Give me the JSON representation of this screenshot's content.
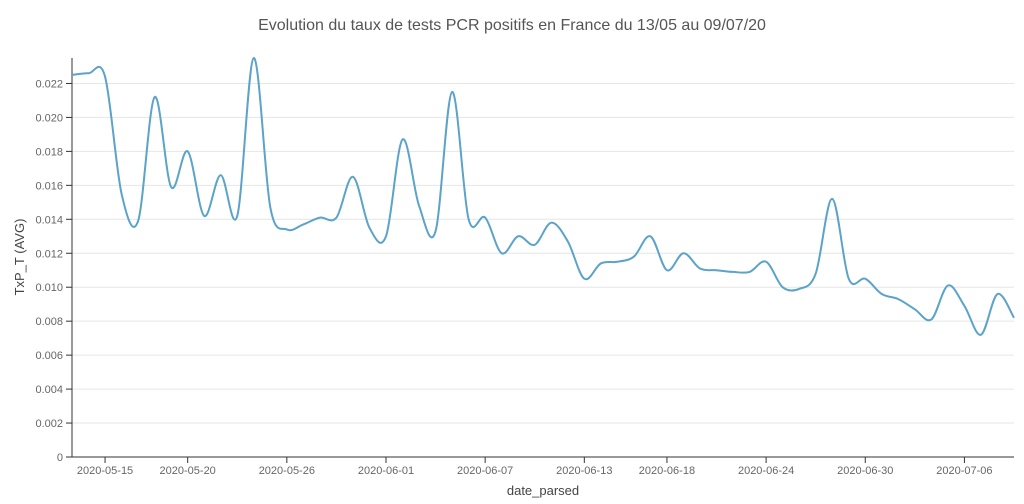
{
  "chart_data": {
    "type": "line",
    "title": "Evolution du taux  de tests PCR positifs en France du 13/05 au 09/07/20",
    "xlabel": "date_parsed",
    "ylabel": "TxP_T (AVG)",
    "ylim": [
      0,
      0.0235
    ],
    "xlim": [
      "2020-05-13",
      "2020-07-09"
    ],
    "yticks": [
      0,
      0.002,
      0.004,
      0.006,
      0.008,
      0.01,
      0.012,
      0.014,
      0.016,
      0.018,
      0.02,
      0.022
    ],
    "ytick_labels": [
      "0",
      "0.002",
      "0.004",
      "0.006",
      "0.008",
      "0.010",
      "0.012",
      "0.014",
      "0.016",
      "0.018",
      "0.020",
      "0.022"
    ],
    "xticks": [
      "2020-05-15",
      "2020-05-20",
      "2020-05-26",
      "2020-06-01",
      "2020-06-07",
      "2020-06-13",
      "2020-06-18",
      "2020-06-24",
      "2020-06-30",
      "2020-07-06"
    ],
    "grid": true,
    "series": [
      {
        "color": "#5ba3c9",
        "x": [
          "2020-05-13",
          "2020-05-14",
          "2020-05-15",
          "2020-05-16",
          "2020-05-17",
          "2020-05-18",
          "2020-05-19",
          "2020-05-20",
          "2020-05-21",
          "2020-05-22",
          "2020-05-23",
          "2020-05-24",
          "2020-05-25",
          "2020-05-26",
          "2020-05-27",
          "2020-05-28",
          "2020-05-29",
          "2020-05-30",
          "2020-05-31",
          "2020-06-01",
          "2020-06-02",
          "2020-06-03",
          "2020-06-04",
          "2020-06-05",
          "2020-06-06",
          "2020-06-07",
          "2020-06-08",
          "2020-06-09",
          "2020-06-10",
          "2020-06-11",
          "2020-06-12",
          "2020-06-13",
          "2020-06-14",
          "2020-06-15",
          "2020-06-16",
          "2020-06-17",
          "2020-06-18",
          "2020-06-19",
          "2020-06-20",
          "2020-06-21",
          "2020-06-22",
          "2020-06-23",
          "2020-06-24",
          "2020-06-25",
          "2020-06-26",
          "2020-06-27",
          "2020-06-28",
          "2020-06-29",
          "2020-06-30",
          "2020-07-01",
          "2020-07-02",
          "2020-07-03",
          "2020-07-04",
          "2020-07-05",
          "2020-07-06",
          "2020-07-07",
          "2020-07-08",
          "2020-07-09"
        ],
        "y": [
          0.0225,
          0.0226,
          0.0224,
          0.0155,
          0.0139,
          0.0212,
          0.0159,
          0.018,
          0.0142,
          0.0166,
          0.0142,
          0.0235,
          0.0147,
          0.0134,
          0.0137,
          0.0141,
          0.0141,
          0.0165,
          0.0135,
          0.013,
          0.0187,
          0.0148,
          0.0133,
          0.0215,
          0.014,
          0.0141,
          0.012,
          0.013,
          0.0125,
          0.0138,
          0.0127,
          0.0105,
          0.0114,
          0.0115,
          0.0118,
          0.013,
          0.011,
          0.012,
          0.0111,
          0.011,
          0.0109,
          0.0109,
          0.0115,
          0.01,
          0.0099,
          0.0108,
          0.0152,
          0.0105,
          0.0105,
          0.0096,
          0.0093,
          0.0087,
          0.0081,
          0.0101,
          0.0089,
          0.0072,
          0.0096,
          0.0082
        ]
      }
    ]
  }
}
